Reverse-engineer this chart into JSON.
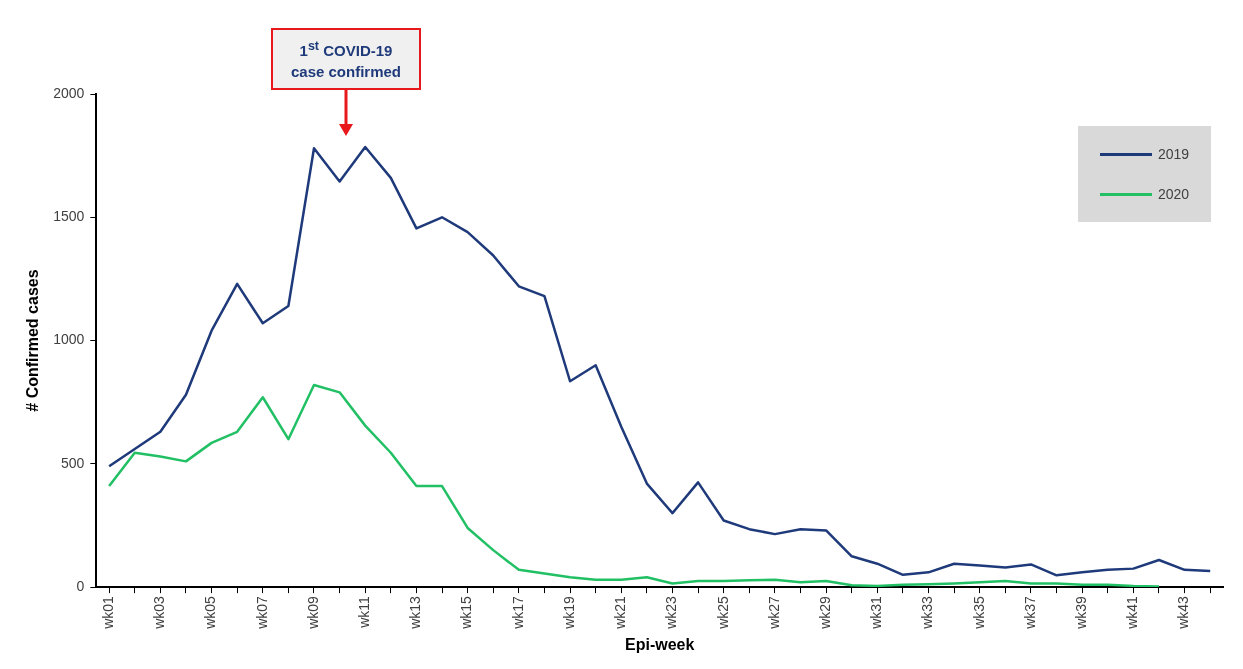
{
  "chart_data": {
    "type": "line",
    "xlabel": "Epi-week",
    "ylabel": "# Confirmed cases",
    "categories": [
      "wk01",
      null,
      "wk03",
      null,
      "wk05",
      null,
      "wk07",
      null,
      "wk09",
      null,
      "wk11",
      null,
      "wk13",
      null,
      "wk15",
      null,
      "wk17",
      null,
      "wk19",
      null,
      "wk21",
      null,
      "wk23",
      null,
      "wk25",
      null,
      "wk27",
      null,
      "wk29",
      null,
      "wk31",
      null,
      "wk33",
      null,
      "wk35",
      null,
      "wk37",
      null,
      "wk39",
      null,
      "wk41",
      null,
      "wk43",
      null
    ],
    "series": [
      {
        "name": "2019",
        "color": "#1f3a7a",
        "values": [
          490,
          560,
          630,
          780,
          1040,
          1230,
          1070,
          1140,
          1780,
          1645,
          1785,
          1660,
          1455,
          1500,
          1440,
          1345,
          1220,
          1180,
          835,
          900,
          650,
          420,
          300,
          425,
          270,
          235,
          215,
          235,
          230,
          125,
          95,
          50,
          60,
          95,
          88,
          80,
          92,
          48,
          60,
          70,
          75,
          110,
          70,
          65
        ]
      },
      {
        "name": "2020",
        "color": "#22c064",
        "values": [
          410,
          545,
          530,
          510,
          585,
          630,
          770,
          600,
          820,
          790,
          655,
          545,
          410,
          410,
          240,
          150,
          70,
          55,
          40,
          30,
          30,
          40,
          15,
          25,
          25,
          28,
          30,
          20,
          25,
          8,
          5,
          10,
          12,
          15,
          20,
          25,
          15,
          15,
          10,
          10,
          5,
          3,
          null,
          null
        ]
      }
    ],
    "ylim": [
      0,
      2000
    ],
    "yticks": [
      0,
      500,
      1000,
      1500,
      2000
    ],
    "grid": false,
    "legend": "top right",
    "marker": "none",
    "line_style": "solid",
    "annotations": [
      "1$^{st}$ COVID-19 case confirmed"
    ]
  }
}
